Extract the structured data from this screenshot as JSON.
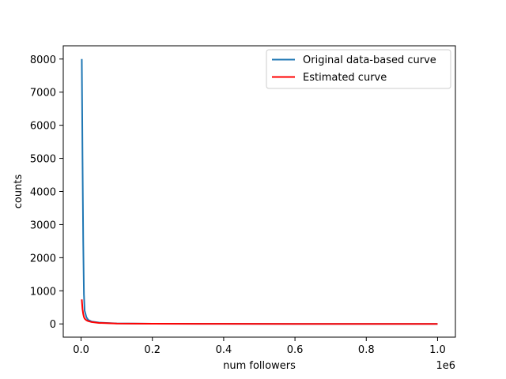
{
  "chart_data": {
    "type": "line",
    "title": "",
    "xlabel": "num followers",
    "ylabel": "counts",
    "x_offset_label": "1e6",
    "xlim": [
      -50000,
      1050000
    ],
    "ylim": [
      -400,
      8400
    ],
    "x_ticks": [
      {
        "value": 0,
        "label": "0.0"
      },
      {
        "value": 200000,
        "label": "0.2"
      },
      {
        "value": 400000,
        "label": "0.4"
      },
      {
        "value": 600000,
        "label": "0.6"
      },
      {
        "value": 800000,
        "label": "0.8"
      },
      {
        "value": 1000000,
        "label": "1.0"
      }
    ],
    "y_ticks": [
      {
        "value": 0,
        "label": "0"
      },
      {
        "value": 1000,
        "label": "1000"
      },
      {
        "value": 2000,
        "label": "2000"
      },
      {
        "value": 3000,
        "label": "3000"
      },
      {
        "value": 4000,
        "label": "4000"
      },
      {
        "value": 5000,
        "label": "5000"
      },
      {
        "value": 6000,
        "label": "6000"
      },
      {
        "value": 7000,
        "label": "7000"
      },
      {
        "value": 8000,
        "label": "8000"
      }
    ],
    "grid": false,
    "legend_position": "top-right",
    "series": [
      {
        "name": "Original data-based curve",
        "color": "#1f77b4",
        "x": [
          2000,
          4000,
          6000,
          8000,
          10000,
          15000,
          20000,
          30000,
          50000,
          100000,
          200000,
          400000,
          600000,
          800000,
          1000000
        ],
        "y": [
          8000,
          5000,
          2500,
          900,
          400,
          200,
          120,
          70,
          40,
          15,
          6,
          2,
          1,
          0.5,
          0.2
        ]
      },
      {
        "name": "Estimated curve",
        "color": "#ff0000",
        "x": [
          2000,
          4000,
          6000,
          8000,
          10000,
          15000,
          20000,
          30000,
          50000,
          100000,
          200000,
          400000,
          600000,
          800000,
          1000000
        ],
        "y": [
          740,
          450,
          300,
          210,
          160,
          110,
          85,
          55,
          30,
          12,
          5,
          2,
          1,
          0.5,
          0.3
        ]
      }
    ]
  }
}
